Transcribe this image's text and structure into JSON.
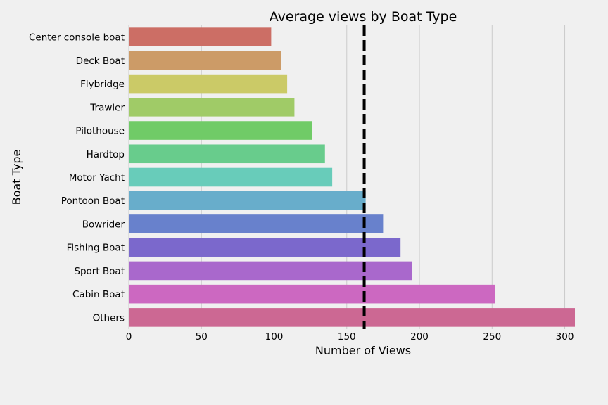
{
  "chart_data": {
    "type": "bar",
    "orientation": "horizontal",
    "title": "Average views by Boat Type",
    "xlabel": "Number of Views",
    "ylabel": "Boat Type",
    "categories": [
      "Center console boat",
      "Deck Boat",
      "Flybridge",
      "Trawler",
      "Pilothouse",
      "Hardtop",
      "Motor Yacht",
      "Pontoon Boat",
      "Bowrider",
      "Fishing Boat",
      "Sport Boat",
      "Cabin Boat",
      "Others"
    ],
    "values": [
      98,
      105,
      109,
      114,
      126,
      135,
      140,
      163,
      175,
      187,
      195,
      252,
      307
    ],
    "colors": [
      "#cc6e65",
      "#cc9b67",
      "#cbca67",
      "#a0cb67",
      "#70cb67",
      "#68cc8c",
      "#68ccba",
      "#68adcb",
      "#6881cc",
      "#7b68cc",
      "#a968cc",
      "#cc68c1",
      "#cc6893"
    ],
    "reference_line": {
      "value": 162,
      "style": "dashed",
      "color": "#000000"
    },
    "xlim": [
      0,
      307
    ],
    "xticks": [
      0,
      50,
      100,
      150,
      200,
      250,
      300
    ],
    "grid": "vertical"
  }
}
